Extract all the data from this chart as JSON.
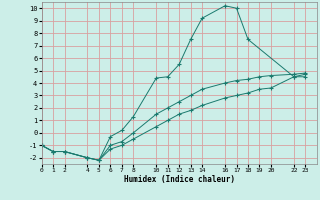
{
  "xlabel": "Humidex (Indice chaleur)",
  "bg_color": "#cceee8",
  "grid_color": "#d9a0a0",
  "line_color": "#1a7a6e",
  "xlim": [
    0,
    24
  ],
  "ylim": [
    -2.5,
    10.5
  ],
  "xticks": [
    0,
    1,
    2,
    4,
    5,
    6,
    7,
    8,
    10,
    11,
    12,
    13,
    14,
    16,
    17,
    18,
    19,
    20,
    22,
    23
  ],
  "yticks": [
    -2,
    -1,
    0,
    1,
    2,
    3,
    4,
    5,
    6,
    7,
    8,
    9,
    10
  ],
  "lines": [
    {
      "x": [
        0,
        1,
        2,
        4,
        5,
        6,
        7,
        8,
        10,
        11,
        12,
        13,
        14,
        16,
        17,
        18,
        22,
        23
      ],
      "y": [
        -1.0,
        -1.5,
        -1.5,
        -2.0,
        -2.2,
        -0.3,
        0.2,
        1.3,
        4.4,
        4.5,
        5.5,
        7.5,
        9.2,
        10.2,
        10.0,
        7.5,
        4.5,
        4.7
      ]
    },
    {
      "x": [
        0,
        1,
        2,
        4,
        5,
        6,
        7,
        8,
        10,
        11,
        12,
        13,
        14,
        16,
        17,
        18,
        19,
        20,
        22,
        23
      ],
      "y": [
        -1.0,
        -1.5,
        -1.5,
        -2.0,
        -2.2,
        -1.0,
        -0.7,
        0.0,
        1.5,
        2.0,
        2.5,
        3.0,
        3.5,
        4.0,
        4.2,
        4.3,
        4.5,
        4.6,
        4.7,
        4.8
      ]
    },
    {
      "x": [
        0,
        1,
        2,
        4,
        5,
        6,
        7,
        8,
        10,
        11,
        12,
        13,
        14,
        16,
        17,
        18,
        19,
        20,
        22,
        23
      ],
      "y": [
        -1.0,
        -1.5,
        -1.5,
        -2.0,
        -2.2,
        -1.3,
        -1.0,
        -0.5,
        0.5,
        1.0,
        1.5,
        1.8,
        2.2,
        2.8,
        3.0,
        3.2,
        3.5,
        3.6,
        4.5,
        4.5
      ]
    }
  ]
}
